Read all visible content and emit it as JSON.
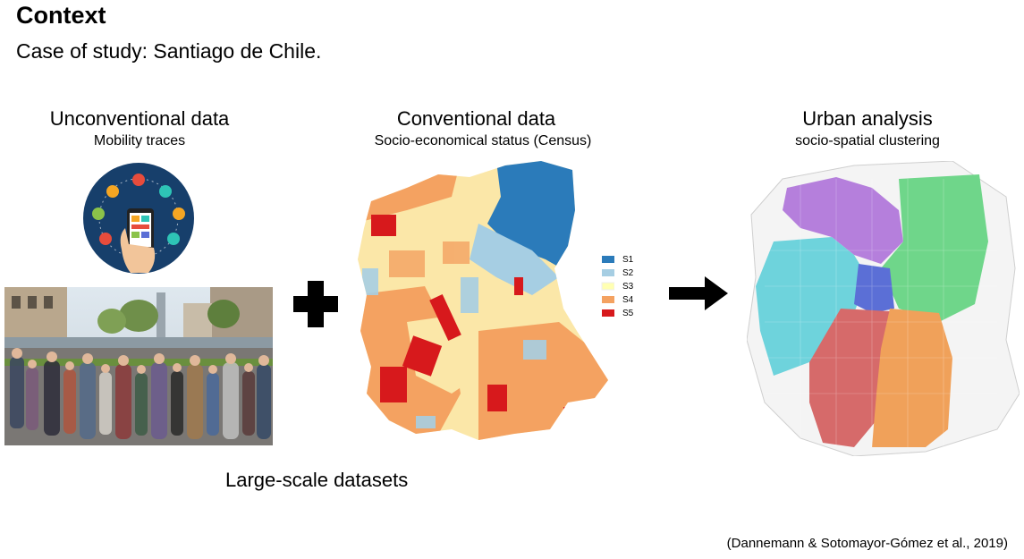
{
  "slide": {
    "title": "Context",
    "subtitle": "Case of study: Santiago de Chile.",
    "footer": "Large-scale datasets",
    "citation": "(Dannemann & Sotomayor-Gómez et al., 2019)"
  },
  "panels": {
    "left": {
      "heading": "Unconventional data",
      "subheading": "Mobility traces"
    },
    "middle": {
      "heading": "Conventional data",
      "subheading": "Socio-economical status (Census)"
    },
    "right": {
      "heading": "Urban analysis",
      "subheading": "socio-spatial clustering"
    }
  },
  "legend": [
    {
      "label": "S1",
      "color": "#2b7bba"
    },
    {
      "label": "S2",
      "color": "#a6cee3"
    },
    {
      "label": "S3",
      "color": "#ffffb2"
    },
    {
      "label": "S4",
      "color": "#f4a261"
    },
    {
      "label": "S5",
      "color": "#d7191c"
    }
  ],
  "clusters": {
    "purple": "#b57fdc",
    "cyan": "#6ed3dc",
    "green": "#6fd68a",
    "blue": "#5b6fd6",
    "red": "#d66a6a",
    "orange": "#f0a15a"
  }
}
